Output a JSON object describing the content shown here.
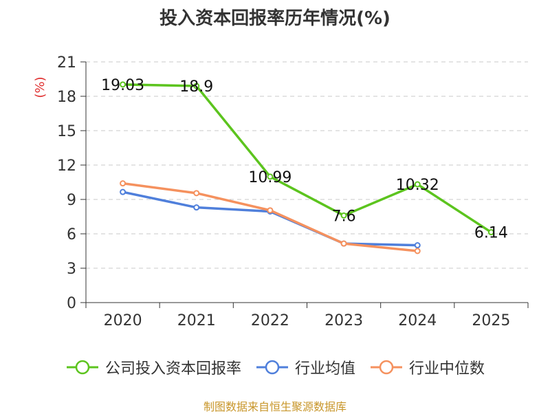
{
  "title": "投入资本回报率历年情况(%)",
  "source": "制图数据来自恒生聚源数据库",
  "colors": {
    "company": "#5cc41e",
    "industry_avg": "#4f7fdb",
    "industry_median": "#f5915e",
    "axis_unit": "#e03030",
    "source_text": "#c8962a",
    "grid": "#c8c8c8",
    "axis": "#333333"
  },
  "chart_data": {
    "type": "line",
    "title": "投入资本回报率历年情况(%)",
    "ylabel": "(%)",
    "xlabel": "",
    "categories": [
      "2020",
      "2021",
      "2022",
      "2023",
      "2024",
      "2025"
    ],
    "ylim": [
      0,
      21
    ],
    "yticks": [
      0,
      3,
      6,
      9,
      12,
      15,
      18,
      21
    ],
    "grid": "horizontal dashed",
    "legend": "bottom",
    "series": [
      {
        "key": "company",
        "name": "公司投入资本回报率",
        "values": [
          19.03,
          18.9,
          10.99,
          7.6,
          10.32,
          6.14
        ],
        "labels": [
          "19.03",
          "18.9",
          "10.99",
          "7.6",
          "10.32",
          "6.14"
        ]
      },
      {
        "key": "industry_avg",
        "name": "行业均值",
        "values": [
          9.65,
          8.3,
          7.95,
          5.15,
          5.0,
          null
        ]
      },
      {
        "key": "industry_median",
        "name": "行业中位数",
        "values": [
          10.4,
          9.55,
          8.05,
          5.15,
          4.5,
          null
        ]
      }
    ]
  }
}
